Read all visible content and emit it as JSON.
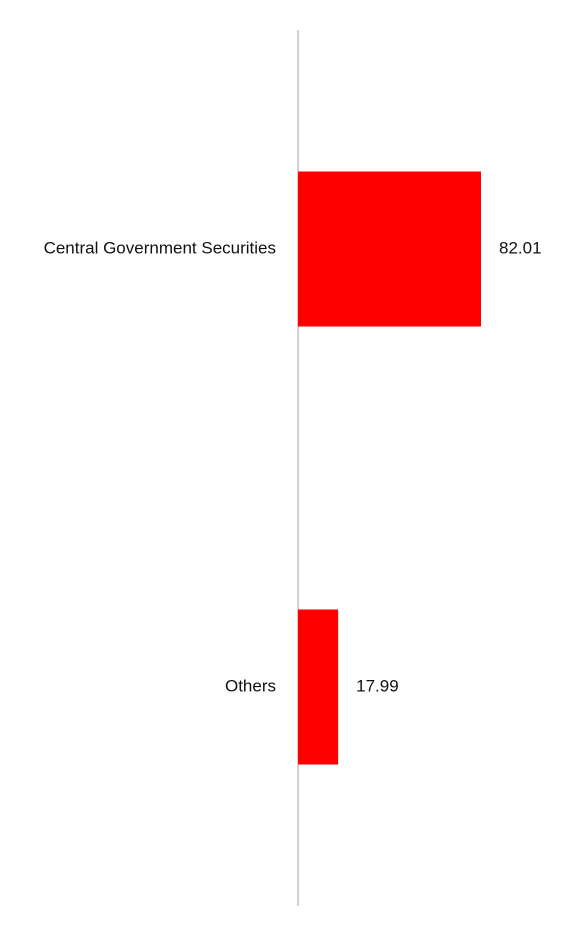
{
  "chart_data": {
    "type": "bar",
    "orientation": "horizontal",
    "categories": [
      "Central Government Securities",
      "Others"
    ],
    "values": [
      82.01,
      17.99
    ],
    "color": "#ff0000",
    "show_value_labels": true
  }
}
